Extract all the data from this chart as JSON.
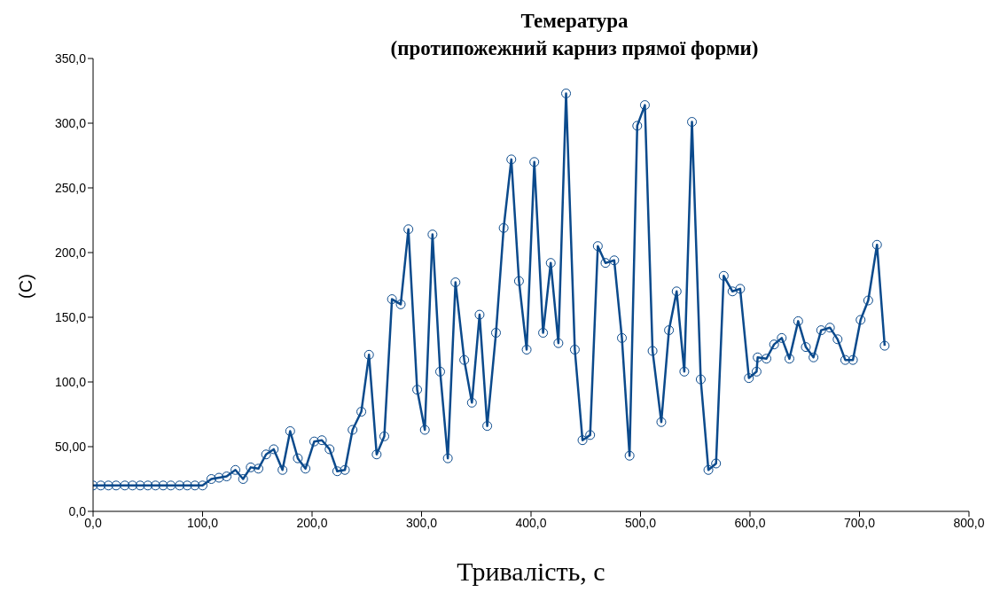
{
  "chart_data": {
    "type": "line",
    "title": "Темература\n(протипожежний карниз прямої форми)",
    "xlabel": "Тривалість, с",
    "ylabel": "(C)",
    "x": [
      0,
      7,
      14,
      21,
      29,
      36,
      43,
      50,
      57,
      64,
      71,
      79,
      86,
      93,
      100,
      108,
      115,
      122,
      130,
      137,
      144,
      151,
      158,
      165,
      173,
      180,
      187,
      194,
      202,
      209,
      216,
      223,
      230,
      237,
      245,
      252,
      259,
      266,
      273,
      281,
      288,
      296,
      303,
      310,
      317,
      324,
      331,
      339,
      346,
      353,
      360,
      368,
      375,
      382,
      389,
      396,
      403,
      411,
      418,
      425,
      432,
      440,
      447,
      454,
      461,
      468,
      476,
      483,
      490,
      497,
      504,
      511,
      519,
      526,
      533,
      540,
      547,
      555,
      562,
      569,
      576,
      584,
      591,
      599,
      606,
      607,
      615,
      622,
      629,
      636,
      644,
      651,
      658,
      665,
      673,
      680,
      687,
      694,
      701,
      708,
      716,
      723
    ],
    "series": [
      {
        "color": "#0b4a8c",
        "values": [
          20,
          20,
          20,
          20,
          20,
          20,
          20,
          20,
          20,
          20,
          20,
          20,
          20,
          20,
          20,
          25,
          26,
          27,
          32,
          25,
          34,
          33,
          44,
          48,
          32,
          62,
          41,
          33,
          54,
          55,
          48,
          31,
          32,
          63,
          77,
          121,
          44,
          58,
          164,
          160,
          218,
          94,
          63,
          214,
          108,
          41,
          177,
          117,
          84,
          152,
          66,
          138,
          219,
          272,
          178,
          125,
          270,
          138,
          192,
          130,
          323,
          125,
          55,
          59,
          205,
          192,
          194,
          134,
          43,
          298,
          314,
          124,
          69,
          140,
          170,
          108,
          301,
          102,
          32,
          37,
          182,
          170,
          172,
          103,
          108,
          119,
          118,
          129,
          134,
          118,
          147,
          127,
          119,
          140,
          142,
          133,
          117,
          117,
          148,
          163,
          206,
          128
        ]
      }
    ],
    "xlim": [
      0,
      800
    ],
    "xticks": [
      {
        "value": 0,
        "label": "0,0"
      },
      {
        "value": 100,
        "label": "100,0"
      },
      {
        "value": 200,
        "label": "200,0"
      },
      {
        "value": 300,
        "label": "300,0"
      },
      {
        "value": 400,
        "label": "400,0"
      },
      {
        "value": 500,
        "label": "500,0"
      },
      {
        "value": 600,
        "label": "600,0"
      },
      {
        "value": 700,
        "label": "700,0"
      },
      {
        "value": 800,
        "label": "800,0"
      }
    ],
    "ylim": [
      0,
      350
    ],
    "yticks": [
      {
        "value": 0,
        "label": "0,0"
      },
      {
        "value": 50,
        "label": "50,00"
      },
      {
        "value": 100,
        "label": "100,0"
      },
      {
        "value": 150,
        "label": "150,0"
      },
      {
        "value": 200,
        "label": "200,0"
      },
      {
        "value": 250,
        "label": "250,0"
      },
      {
        "value": 300,
        "label": "300,0"
      },
      {
        "value": 350,
        "label": "350,0"
      }
    ],
    "grid": false,
    "legend": false,
    "marker": "circle",
    "line_style": "solid"
  }
}
